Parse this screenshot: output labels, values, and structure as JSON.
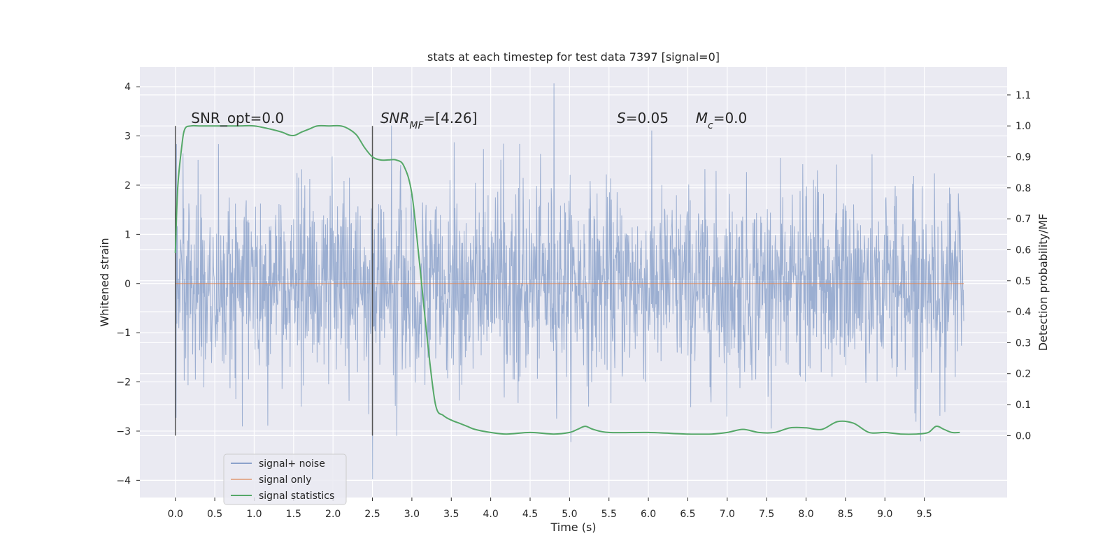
{
  "chart_data": {
    "type": "line",
    "title": "stats at each timestep for test data 7397 [signal=0]",
    "xlabel": "Time (s)",
    "ylabel": "Whitened strain",
    "ylabel_right": "Detection probability/MF",
    "xlim": [
      -0.45,
      10.55
    ],
    "ylim": [
      -4.35,
      4.4
    ],
    "ylim_right": [
      -0.2,
      1.19
    ],
    "x_ticks": [
      0.0,
      0.5,
      1.0,
      1.5,
      2.0,
      2.5,
      3.0,
      3.5,
      4.0,
      4.5,
      5.0,
      5.5,
      6.0,
      6.5,
      7.0,
      7.5,
      8.0,
      8.5,
      9.0,
      9.5
    ],
    "y_ticks": [
      -4,
      -3,
      -2,
      -1,
      0,
      1,
      2,
      3,
      4
    ],
    "y_ticks_right": [
      0.0,
      0.1,
      0.2,
      0.3,
      0.4,
      0.5,
      0.6,
      0.7,
      0.8,
      0.9,
      1.0,
      1.1
    ],
    "grid": true,
    "legend_position": "lower-left",
    "series": [
      {
        "name": "signal+ noise",
        "color": "#4c72b0",
        "kind": "noise",
        "x_range": [
          0.0,
          10.0
        ],
        "num_samples": 2048,
        "core_band": [
          -1.8,
          1.8
        ],
        "typical_extreme": [
          -2.7,
          2.8
        ],
        "max_value": 4.07,
        "min_value": -3.98
      },
      {
        "name": "signal only",
        "color": "#dd8452",
        "x": [
          0.0,
          10.0
        ],
        "y": [
          0.0,
          0.0
        ]
      },
      {
        "name": "signal statistics",
        "color": "#55a868",
        "axis": "right",
        "x": [
          0.0,
          0.03,
          0.08,
          0.12,
          0.2,
          0.3,
          0.5,
          0.8,
          1.0,
          1.2,
          1.35,
          1.45,
          1.52,
          1.6,
          1.7,
          1.8,
          1.95,
          2.1,
          2.2,
          2.3,
          2.4,
          2.5,
          2.6,
          2.7,
          2.8,
          2.9,
          3.0,
          3.1,
          3.2,
          3.3,
          3.4,
          3.5,
          3.6,
          3.7,
          3.8,
          4.0,
          4.2,
          4.5,
          4.8,
          5.0,
          5.1,
          5.2,
          5.3,
          5.5,
          6.0,
          6.5,
          6.8,
          7.0,
          7.2,
          7.4,
          7.6,
          7.8,
          8.0,
          8.2,
          8.4,
          8.6,
          8.8,
          9.0,
          9.2,
          9.4,
          9.55,
          9.65,
          9.75,
          9.85,
          9.95
        ],
        "y": [
          0.59,
          0.8,
          0.93,
          0.99,
          1.0,
          1.0,
          1.0,
          1.0,
          1.0,
          0.99,
          0.98,
          0.97,
          0.97,
          0.98,
          0.99,
          1.0,
          1.0,
          1.0,
          0.99,
          0.97,
          0.93,
          0.9,
          0.89,
          0.89,
          0.89,
          0.87,
          0.78,
          0.55,
          0.3,
          0.1,
          0.065,
          0.05,
          0.04,
          0.03,
          0.02,
          0.01,
          0.005,
          0.01,
          0.005,
          0.01,
          0.02,
          0.03,
          0.02,
          0.01,
          0.01,
          0.005,
          0.005,
          0.01,
          0.02,
          0.01,
          0.01,
          0.025,
          0.025,
          0.02,
          0.045,
          0.04,
          0.01,
          0.01,
          0.005,
          0.005,
          0.01,
          0.03,
          0.02,
          0.01,
          0.01
        ]
      }
    ],
    "markers": [
      {
        "x": 0.0,
        "y_right": [
          0.0,
          1.0
        ]
      },
      {
        "x": 2.5,
        "y_right": [
          0.0,
          1.0
        ]
      }
    ],
    "annotations": [
      {
        "parts": [
          {
            "text": "SNR_opt=0.0"
          }
        ],
        "x": 0.2,
        "y_right": 1.01
      },
      {
        "parts": [
          {
            "text": "SNR",
            "italic": true
          },
          {
            "text": "MF",
            "italic": true,
            "sub": true
          },
          {
            "text": "=[4.26]"
          }
        ],
        "x": 2.6,
        "y_right": 1.01
      },
      {
        "parts": [
          {
            "text": "S",
            "italic": true
          },
          {
            "text": "=0.05"
          }
        ],
        "x": 5.6,
        "y_right": 1.01
      },
      {
        "parts": [
          {
            "text": "M",
            "italic": true
          },
          {
            "text": "c",
            "italic": true,
            "sub": true
          },
          {
            "text": "=0.0"
          }
        ],
        "x": 6.6,
        "y_right": 1.01
      }
    ]
  }
}
